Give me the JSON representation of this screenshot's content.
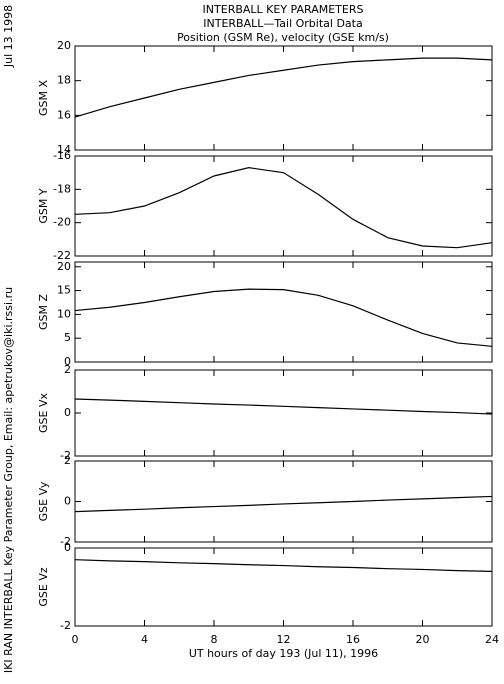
{
  "header": {
    "title": [
      "INTERBALL KEY PARAMETERS",
      "INTERBALL—Tail Orbital Data",
      "Position (GSM Re), velocity (GSE km/s)"
    ],
    "date": "Jul 13 1998",
    "credit": "IKI RAN INTERBALL Key Parameter Group, Email: apetrukov@iki.rssi.ru"
  },
  "chart_data": [
    {
      "type": "line",
      "ylabel": "GSM X",
      "x": [
        0,
        2,
        4,
        6,
        8,
        10,
        12,
        14,
        16,
        18,
        20,
        22,
        24
      ],
      "values": [
        15.9,
        16.5,
        17.0,
        17.5,
        17.9,
        18.3,
        18.6,
        18.9,
        19.1,
        19.2,
        19.3,
        19.3,
        19.2
      ],
      "xlim": [
        0,
        24
      ],
      "xticks": [
        0,
        4,
        8,
        12,
        16,
        20,
        24
      ],
      "ylim": [
        14,
        20
      ],
      "yticks": [
        14,
        16,
        18,
        20
      ],
      "color": "#000000"
    },
    {
      "type": "line",
      "ylabel": "GSM Y",
      "x": [
        0,
        2,
        4,
        6,
        8,
        10,
        12,
        14,
        16,
        18,
        20,
        22,
        24
      ],
      "values": [
        -19.5,
        -19.4,
        -19.0,
        -18.2,
        -17.2,
        -16.7,
        -17.0,
        -18.3,
        -19.8,
        -20.9,
        -21.4,
        -21.5,
        -21.2
      ],
      "xlim": [
        0,
        24
      ],
      "xticks": [
        0,
        4,
        8,
        12,
        16,
        20,
        24
      ],
      "ylim": [
        -22,
        -16
      ],
      "yticks": [
        -22,
        -20,
        -18,
        -16
      ],
      "color": "#000000"
    },
    {
      "type": "line",
      "ylabel": "GSM Z",
      "x": [
        0,
        2,
        4,
        6,
        8,
        10,
        12,
        14,
        16,
        18,
        20,
        22,
        24
      ],
      "values": [
        10.8,
        11.5,
        12.5,
        13.7,
        14.8,
        15.3,
        15.2,
        14.0,
        11.8,
        8.8,
        6.0,
        4.0,
        3.3
      ],
      "xlim": [
        0,
        24
      ],
      "xticks": [
        0,
        4,
        8,
        12,
        16,
        20,
        24
      ],
      "ylim": [
        0,
        21
      ],
      "yticks": [
        0,
        5,
        10,
        15,
        20
      ],
      "color": "#000000"
    },
    {
      "type": "line",
      "ylabel": "GSE Vx",
      "x": [
        0,
        2,
        4,
        6,
        8,
        10,
        12,
        14,
        16,
        18,
        20,
        22,
        24
      ],
      "values": [
        0.65,
        0.6,
        0.54,
        0.48,
        0.42,
        0.37,
        0.31,
        0.25,
        0.19,
        0.13,
        0.07,
        0.02,
        -0.05
      ],
      "xlim": [
        0,
        24
      ],
      "xticks": [
        0,
        4,
        8,
        12,
        16,
        20,
        24
      ],
      "ylim": [
        -2,
        2
      ],
      "yticks": [
        -2,
        0,
        2
      ],
      "color": "#000000"
    },
    {
      "type": "line",
      "ylabel": "GSE Vy",
      "x": [
        0,
        2,
        4,
        6,
        8,
        10,
        12,
        14,
        16,
        18,
        20,
        22,
        24
      ],
      "values": [
        -0.5,
        -0.44,
        -0.38,
        -0.31,
        -0.25,
        -0.19,
        -0.12,
        -0.06,
        0.0,
        0.07,
        0.13,
        0.19,
        0.25
      ],
      "xlim": [
        0,
        24
      ],
      "xticks": [
        0,
        4,
        8,
        12,
        16,
        20,
        24
      ],
      "ylim": [
        -2,
        2
      ],
      "yticks": [
        -2,
        0,
        2
      ],
      "color": "#000000"
    },
    {
      "type": "line",
      "ylabel": "GSE Vz",
      "x": [
        0,
        2,
        4,
        6,
        8,
        10,
        12,
        14,
        16,
        18,
        20,
        22,
        24
      ],
      "values": [
        -0.3,
        -0.33,
        -0.35,
        -0.38,
        -0.4,
        -0.43,
        -0.45,
        -0.48,
        -0.5,
        -0.53,
        -0.55,
        -0.58,
        -0.6
      ],
      "xlim": [
        0,
        24
      ],
      "xticks": [
        0,
        4,
        8,
        12,
        16,
        20,
        24
      ],
      "ylim": [
        -2,
        0
      ],
      "yticks": [
        -2,
        0
      ],
      "color": "#000000",
      "xlabel": "UT hours of day 193 (Jul 11), 1996"
    }
  ]
}
